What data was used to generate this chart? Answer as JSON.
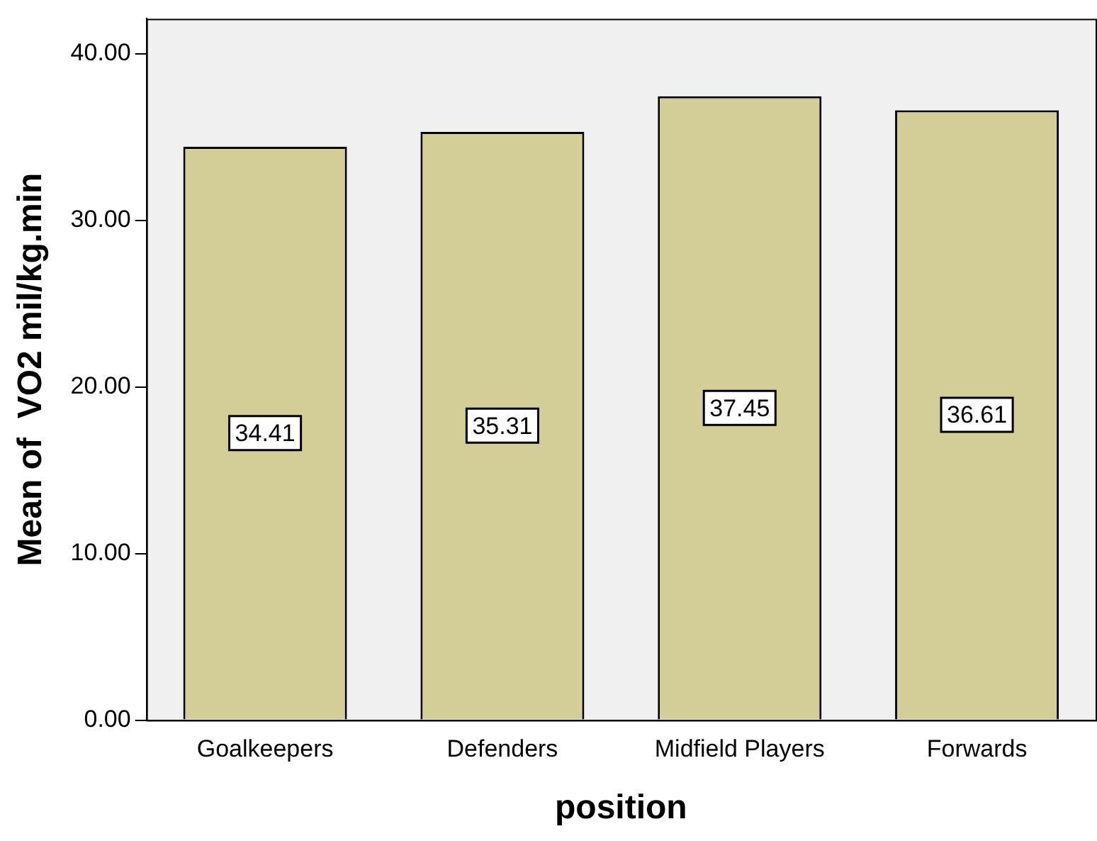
{
  "chart_data": {
    "type": "bar",
    "xlabel": "position",
    "ylabel": "Mean of  VO2 mil/kg.min",
    "categories": [
      "Goalkeepers",
      "Defenders",
      "Midfield Players",
      "Forwards"
    ],
    "values": [
      34.41,
      35.31,
      37.45,
      36.61
    ],
    "color": "#d3ce97",
    "ylim": [
      0,
      42.1
    ],
    "yticks": [
      {
        "value": 0,
        "label": "0.00"
      },
      {
        "value": 10,
        "label": "10.00"
      },
      {
        "value": 20,
        "label": "20.00"
      },
      {
        "value": 30,
        "label": "30.00"
      },
      {
        "value": 40,
        "label": "40.00"
      }
    ],
    "data_labels": true,
    "grid": false,
    "legend": false
  }
}
